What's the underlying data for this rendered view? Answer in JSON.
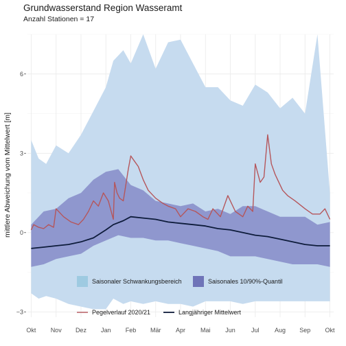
{
  "title": "Grundwasserstand Region Wasseramt",
  "subtitle": "Anzahl Stationen = 17",
  "colors": {
    "range_band": "#c6dbef",
    "quantile_band": "#8c93cb",
    "pegel_line": "#b5565b",
    "mean_line": "#0d1b3a",
    "legend_range_swatch": "#9ecae1",
    "legend_quantile_swatch": "#6f74b8"
  },
  "chart_data": {
    "type": "area",
    "title": "Grundwasserstand Region Wasseramt",
    "subtitle": "Anzahl Stationen = 17",
    "ylabel": "mittlere Abweichung vom Mittelwert [m]",
    "xlabel": "",
    "x_ticks": [
      "Okt",
      "Nov",
      "Dez",
      "Jan",
      "Feb",
      "Mär",
      "Apr",
      "Mai",
      "Jun",
      "Jul",
      "Aug",
      "Sep",
      "Okt"
    ],
    "y_ticks": [
      -3,
      0,
      3,
      6
    ],
    "ylim": [
      -3.2,
      7.5
    ],
    "grid": true,
    "x_unit": "Monate ab Oktober",
    "legend": [
      "Saisonaler Schwankungsbereich",
      "Saisonales 10/90%-Quantil",
      "Pegelverlauf 2020/21",
      "Langjähriger Mittelwert"
    ],
    "legend_position": "bottom",
    "series": [
      {
        "name": "Saisonaler Schwankungsbereich",
        "kind": "band",
        "x": [
          0,
          0.3,
          0.6,
          1.0,
          1.5,
          2.0,
          2.5,
          3.0,
          3.3,
          3.7,
          4.0,
          4.5,
          5.0,
          5.5,
          6.0,
          6.5,
          7.0,
          7.5,
          8.0,
          8.5,
          9.0,
          9.5,
          10.0,
          10.5,
          11.0,
          11.5,
          12.0
        ],
        "upper": [
          3.5,
          2.8,
          2.6,
          3.3,
          3.0,
          3.7,
          4.6,
          5.5,
          6.5,
          6.9,
          6.4,
          7.5,
          6.2,
          7.2,
          7.3,
          6.4,
          5.5,
          5.5,
          5.0,
          4.8,
          5.6,
          5.3,
          4.7,
          5.1,
          4.5,
          7.5,
          1.5
        ],
        "lower": [
          -2.3,
          -2.5,
          -2.4,
          -2.5,
          -2.7,
          -2.8,
          -2.9,
          -2.9,
          -2.5,
          -2.7,
          -2.6,
          -2.7,
          -2.6,
          -2.7,
          -2.7,
          -2.8,
          -2.6,
          -2.6,
          -2.6,
          -2.7,
          -2.6,
          -2.6,
          -2.6,
          -2.6,
          -2.6,
          -2.6,
          -2.6
        ]
      },
      {
        "name": "Saisonales 10/90%-Quantil",
        "kind": "band",
        "x": [
          0,
          0.5,
          1.0,
          1.5,
          2.0,
          2.5,
          3.0,
          3.5,
          4.0,
          4.5,
          5.0,
          5.5,
          6.0,
          6.5,
          7.0,
          7.5,
          8.0,
          8.5,
          9.0,
          9.5,
          10.0,
          10.5,
          11.0,
          11.5,
          12.0
        ],
        "upper": [
          0.3,
          0.8,
          0.9,
          1.3,
          1.5,
          2.0,
          2.3,
          2.4,
          1.8,
          1.6,
          1.2,
          1.1,
          1.0,
          1.1,
          0.8,
          0.9,
          0.7,
          1.0,
          1.0,
          0.8,
          0.6,
          0.6,
          0.6,
          0.3,
          0.4
        ],
        "lower": [
          -1.3,
          -1.2,
          -1.0,
          -0.9,
          -0.8,
          -0.5,
          -0.3,
          -0.1,
          -0.2,
          -0.2,
          -0.3,
          -0.3,
          -0.4,
          -0.5,
          -0.6,
          -0.7,
          -0.9,
          -0.9,
          -0.9,
          -1.0,
          -1.1,
          -1.2,
          -1.2,
          -1.2,
          -1.3
        ]
      },
      {
        "name": "Pegelverlauf 2020/21",
        "kind": "line",
        "x": [
          0,
          0.1,
          0.3,
          0.5,
          0.7,
          0.9,
          1.0,
          1.3,
          1.6,
          1.9,
          2.1,
          2.3,
          2.5,
          2.7,
          2.9,
          3.1,
          3.3,
          3.35,
          3.45,
          3.55,
          3.7,
          3.9,
          4.0,
          4.15,
          4.3,
          4.5,
          4.7,
          5.0,
          5.3,
          5.5,
          5.8,
          6.0,
          6.3,
          6.6,
          6.9,
          7.1,
          7.3,
          7.6,
          7.9,
          8.2,
          8.5,
          8.7,
          8.9,
          9.0,
          9.2,
          9.35,
          9.5,
          9.65,
          9.8,
          9.9,
          10.1,
          10.3,
          10.6,
          11.0,
          11.3,
          11.6,
          11.8,
          12.0
        ],
        "y": [
          0.1,
          0.3,
          0.2,
          0.15,
          0.3,
          0.2,
          0.9,
          0.6,
          0.4,
          0.3,
          0.5,
          0.8,
          1.2,
          1.0,
          1.5,
          1.2,
          0.5,
          1.9,
          1.5,
          1.3,
          1.2,
          2.4,
          2.9,
          2.7,
          2.5,
          2.0,
          1.6,
          1.3,
          1.1,
          1.0,
          0.9,
          0.6,
          0.9,
          0.8,
          0.6,
          0.5,
          0.9,
          0.6,
          1.4,
          0.8,
          0.6,
          1.0,
          0.8,
          2.6,
          1.9,
          2.1,
          3.7,
          2.6,
          2.2,
          2.0,
          1.6,
          1.4,
          1.2,
          0.9,
          0.7,
          0.7,
          0.9,
          0.5
        ]
      },
      {
        "name": "Langjähriger Mittelwert",
        "kind": "line",
        "x": [
          0,
          0.5,
          1.0,
          1.5,
          2.0,
          2.5,
          3.0,
          3.3,
          3.7,
          4.0,
          4.5,
          5.0,
          5.5,
          6.0,
          6.5,
          7.0,
          7.5,
          8.0,
          8.5,
          9.0,
          9.5,
          10.0,
          10.5,
          11.0,
          11.5,
          12.0
        ],
        "y": [
          -0.6,
          -0.55,
          -0.5,
          -0.45,
          -0.35,
          -0.2,
          0.1,
          0.3,
          0.45,
          0.6,
          0.55,
          0.5,
          0.4,
          0.35,
          0.3,
          0.25,
          0.15,
          0.1,
          0.0,
          -0.1,
          -0.15,
          -0.25,
          -0.35,
          -0.45,
          -0.5,
          -0.5
        ]
      }
    ]
  }
}
